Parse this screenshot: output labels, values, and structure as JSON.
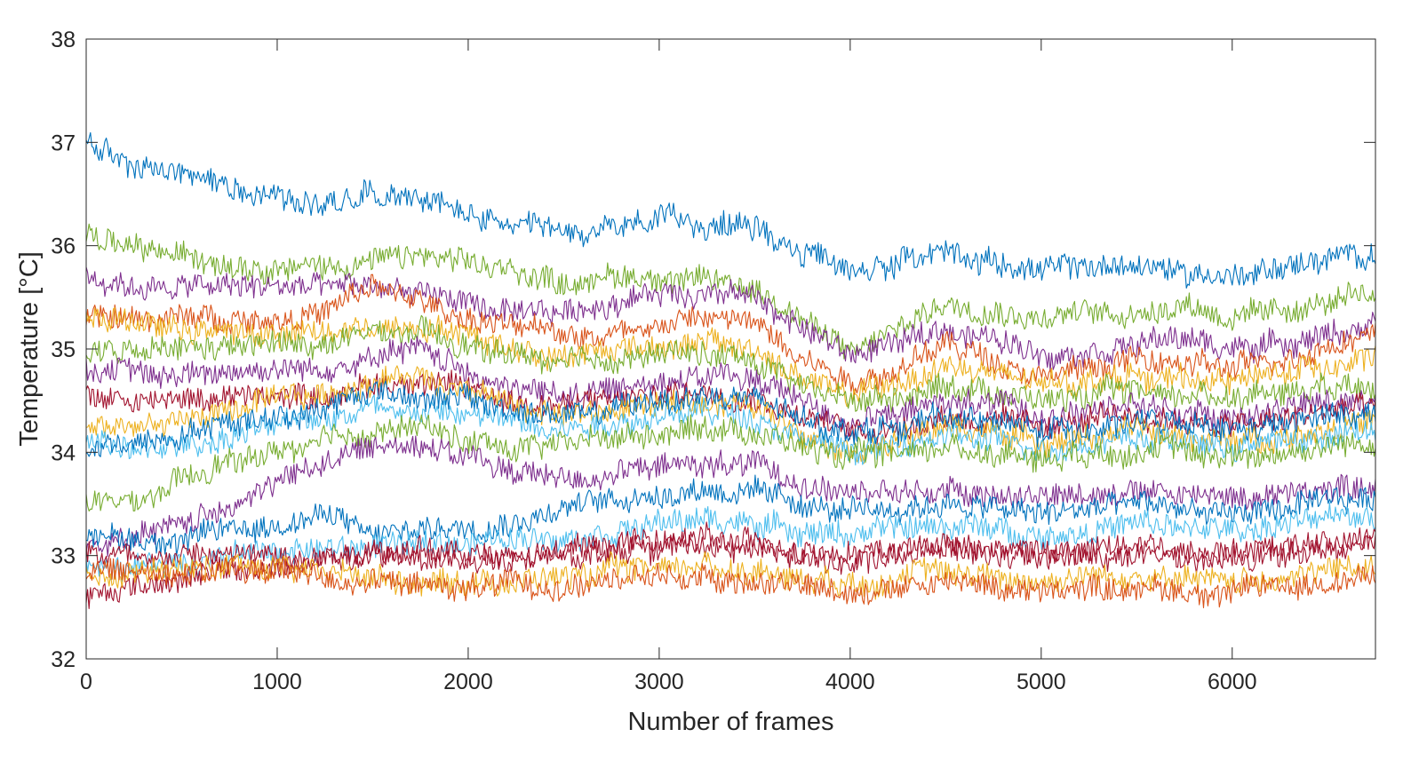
{
  "chart_data": {
    "type": "line",
    "title": "",
    "xlabel": "Number of frames",
    "ylabel": "Temperature [°C]",
    "xlim": [
      0,
      6750
    ],
    "ylim": [
      32,
      38
    ],
    "xticks": [
      0,
      1000,
      2000,
      3000,
      4000,
      5000,
      6000
    ],
    "yticks": [
      32,
      33,
      34,
      35,
      36,
      37,
      38
    ],
    "grid": false,
    "legend": "none",
    "x": [
      0,
      250,
      500,
      750,
      1000,
      1250,
      1500,
      1750,
      2000,
      2250,
      2500,
      2750,
      3000,
      3250,
      3500,
      3750,
      4000,
      4250,
      4500,
      4750,
      5000,
      5250,
      5500,
      5750,
      6000,
      6250,
      6500,
      6750
    ],
    "series": [
      {
        "color": "#0072BD",
        "values": [
          37.0,
          36.75,
          36.7,
          36.6,
          36.5,
          36.4,
          36.55,
          36.45,
          36.3,
          36.15,
          36.1,
          36.15,
          36.25,
          36.2,
          36.2,
          35.95,
          35.75,
          35.85,
          35.95,
          35.85,
          35.75,
          35.8,
          35.8,
          35.75,
          35.7,
          35.8,
          35.85,
          35.95
        ]
      },
      {
        "color": "#77AC30",
        "values": [
          36.1,
          35.95,
          35.9,
          35.85,
          35.8,
          35.8,
          35.85,
          35.9,
          35.8,
          35.75,
          35.65,
          35.7,
          35.7,
          35.65,
          35.6,
          35.3,
          34.95,
          35.2,
          35.45,
          35.4,
          35.3,
          35.35,
          35.35,
          35.45,
          35.3,
          35.35,
          35.45,
          35.5
        ]
      },
      {
        "color": "#7E2F8E",
        "values": [
          35.7,
          35.6,
          35.6,
          35.6,
          35.6,
          35.6,
          35.6,
          35.55,
          35.45,
          35.3,
          35.35,
          35.45,
          35.55,
          35.55,
          35.5,
          35.2,
          34.95,
          35.05,
          35.2,
          35.1,
          34.95,
          35.0,
          35.05,
          35.1,
          35.0,
          35.05,
          35.15,
          35.2
        ]
      },
      {
        "color": "#D95319",
        "values": [
          35.3,
          35.3,
          35.3,
          35.3,
          35.3,
          35.35,
          35.6,
          35.45,
          35.3,
          35.2,
          35.15,
          35.15,
          35.25,
          35.3,
          35.25,
          34.95,
          34.7,
          34.8,
          35.05,
          34.9,
          34.75,
          34.8,
          34.9,
          34.85,
          34.8,
          34.9,
          35.05,
          35.15
        ]
      },
      {
        "color": "#EDB120",
        "values": [
          35.35,
          35.25,
          35.2,
          35.15,
          35.15,
          35.15,
          35.2,
          35.25,
          35.15,
          35.0,
          34.95,
          35.0,
          35.05,
          35.05,
          35.0,
          34.7,
          34.55,
          34.65,
          34.85,
          34.75,
          34.65,
          34.7,
          34.75,
          34.7,
          34.7,
          34.75,
          34.85,
          34.95
        ]
      },
      {
        "color": "#77AC30",
        "values": [
          34.95,
          34.95,
          35.0,
          35.0,
          35.05,
          35.05,
          35.15,
          35.15,
          35.0,
          34.95,
          34.85,
          34.9,
          34.95,
          34.95,
          34.9,
          34.65,
          34.5,
          34.55,
          34.65,
          34.6,
          34.5,
          34.55,
          34.6,
          34.55,
          34.55,
          34.6,
          34.65,
          34.7
        ]
      },
      {
        "color": "#7E2F8E",
        "values": [
          34.8,
          34.75,
          34.75,
          34.8,
          34.8,
          34.8,
          34.9,
          35.0,
          34.8,
          34.6,
          34.55,
          34.6,
          34.7,
          34.75,
          34.7,
          34.5,
          34.3,
          34.35,
          34.5,
          34.45,
          34.35,
          34.4,
          34.45,
          34.4,
          34.35,
          34.4,
          34.5,
          34.55
        ]
      },
      {
        "color": "#A2142F",
        "values": [
          34.55,
          34.5,
          34.5,
          34.55,
          34.55,
          34.55,
          34.65,
          34.7,
          34.6,
          34.5,
          34.45,
          34.5,
          34.55,
          34.6,
          34.55,
          34.35,
          34.2,
          34.25,
          34.35,
          34.3,
          34.25,
          34.3,
          34.35,
          34.3,
          34.25,
          34.3,
          34.4,
          34.45
        ]
      },
      {
        "color": "#EDB120",
        "values": [
          34.2,
          34.25,
          34.3,
          34.4,
          34.5,
          34.55,
          34.7,
          34.75,
          34.6,
          34.45,
          34.35,
          34.4,
          34.45,
          34.5,
          34.45,
          34.2,
          34.05,
          34.1,
          34.25,
          34.2,
          34.1,
          34.15,
          34.2,
          34.15,
          34.1,
          34.15,
          34.25,
          34.3
        ]
      },
      {
        "color": "#4DBEEE",
        "values": [
          34.1,
          34.0,
          34.05,
          34.15,
          34.25,
          34.35,
          34.45,
          34.4,
          34.35,
          34.3,
          34.25,
          34.3,
          34.35,
          34.4,
          34.35,
          34.15,
          34.0,
          34.05,
          34.15,
          34.1,
          34.05,
          34.1,
          34.15,
          34.1,
          34.05,
          34.1,
          34.15,
          34.2
        ]
      },
      {
        "color": "#0072BD",
        "values": [
          34.0,
          34.1,
          34.2,
          34.3,
          34.35,
          34.45,
          34.6,
          34.55,
          34.5,
          34.4,
          34.35,
          34.4,
          34.5,
          34.55,
          34.5,
          34.3,
          34.2,
          34.25,
          34.35,
          34.3,
          34.2,
          34.25,
          34.3,
          34.25,
          34.2,
          34.25,
          34.35,
          34.4
        ]
      },
      {
        "color": "#77AC30",
        "values": [
          33.5,
          33.5,
          33.7,
          33.9,
          34.0,
          34.1,
          34.2,
          34.25,
          34.1,
          34.05,
          34.1,
          34.15,
          34.2,
          34.25,
          34.2,
          34.05,
          33.95,
          34.0,
          34.05,
          34.0,
          33.95,
          34.0,
          34.05,
          34.0,
          33.95,
          34.0,
          34.05,
          34.1
        ]
      },
      {
        "color": "#7E2F8E",
        "values": [
          33.1,
          33.15,
          33.3,
          33.5,
          33.7,
          33.9,
          34.05,
          34.1,
          33.95,
          33.8,
          33.75,
          33.8,
          33.85,
          33.9,
          33.85,
          33.7,
          33.6,
          33.6,
          33.65,
          33.6,
          33.55,
          33.6,
          33.65,
          33.6,
          33.55,
          33.6,
          33.65,
          33.7
        ]
      },
      {
        "color": "#0072BD",
        "values": [
          33.2,
          33.15,
          33.15,
          33.25,
          33.3,
          33.4,
          33.2,
          33.25,
          33.3,
          33.35,
          33.45,
          33.55,
          33.6,
          33.65,
          33.6,
          33.5,
          33.4,
          33.45,
          33.5,
          33.45,
          33.4,
          33.45,
          33.5,
          33.45,
          33.4,
          33.45,
          33.5,
          33.55
        ]
      },
      {
        "color": "#4DBEEE",
        "values": [
          32.95,
          32.9,
          32.95,
          33.0,
          33.05,
          33.05,
          33.1,
          33.1,
          33.15,
          33.15,
          33.2,
          33.25,
          33.3,
          33.35,
          33.3,
          33.25,
          33.2,
          33.25,
          33.3,
          33.25,
          33.2,
          33.25,
          33.3,
          33.25,
          33.25,
          33.3,
          33.35,
          33.4
        ]
      },
      {
        "color": "#A2142F",
        "values": [
          33.05,
          33.0,
          33.0,
          33.0,
          33.0,
          33.0,
          33.05,
          33.05,
          33.0,
          33.0,
          33.05,
          33.1,
          33.15,
          33.15,
          33.1,
          33.05,
          33.05,
          33.05,
          33.1,
          33.05,
          33.05,
          33.05,
          33.1,
          33.05,
          33.05,
          33.1,
          33.15,
          33.2
        ]
      },
      {
        "color": "#A2142F",
        "values": [
          32.6,
          32.7,
          32.8,
          32.85,
          32.9,
          32.95,
          33.0,
          33.0,
          32.95,
          32.95,
          33.0,
          33.05,
          33.1,
          33.1,
          33.05,
          33.0,
          32.95,
          33.0,
          33.05,
          33.0,
          32.95,
          33.0,
          33.0,
          32.95,
          32.95,
          33.0,
          33.05,
          33.1
        ]
      },
      {
        "color": "#EDB120",
        "values": [
          32.8,
          32.85,
          32.85,
          32.9,
          32.9,
          32.85,
          32.8,
          32.75,
          32.75,
          32.75,
          32.8,
          32.85,
          32.9,
          32.9,
          32.85,
          32.8,
          32.75,
          32.8,
          32.85,
          32.8,
          32.75,
          32.8,
          32.8,
          32.75,
          32.75,
          32.8,
          32.85,
          32.9
        ]
      },
      {
        "color": "#D95319",
        "values": [
          32.85,
          32.85,
          32.85,
          32.85,
          32.85,
          32.8,
          32.75,
          32.7,
          32.7,
          32.7,
          32.7,
          32.75,
          32.8,
          32.8,
          32.75,
          32.7,
          32.65,
          32.7,
          32.75,
          32.7,
          32.65,
          32.7,
          32.7,
          32.65,
          32.65,
          32.7,
          32.75,
          32.8
        ]
      }
    ]
  }
}
